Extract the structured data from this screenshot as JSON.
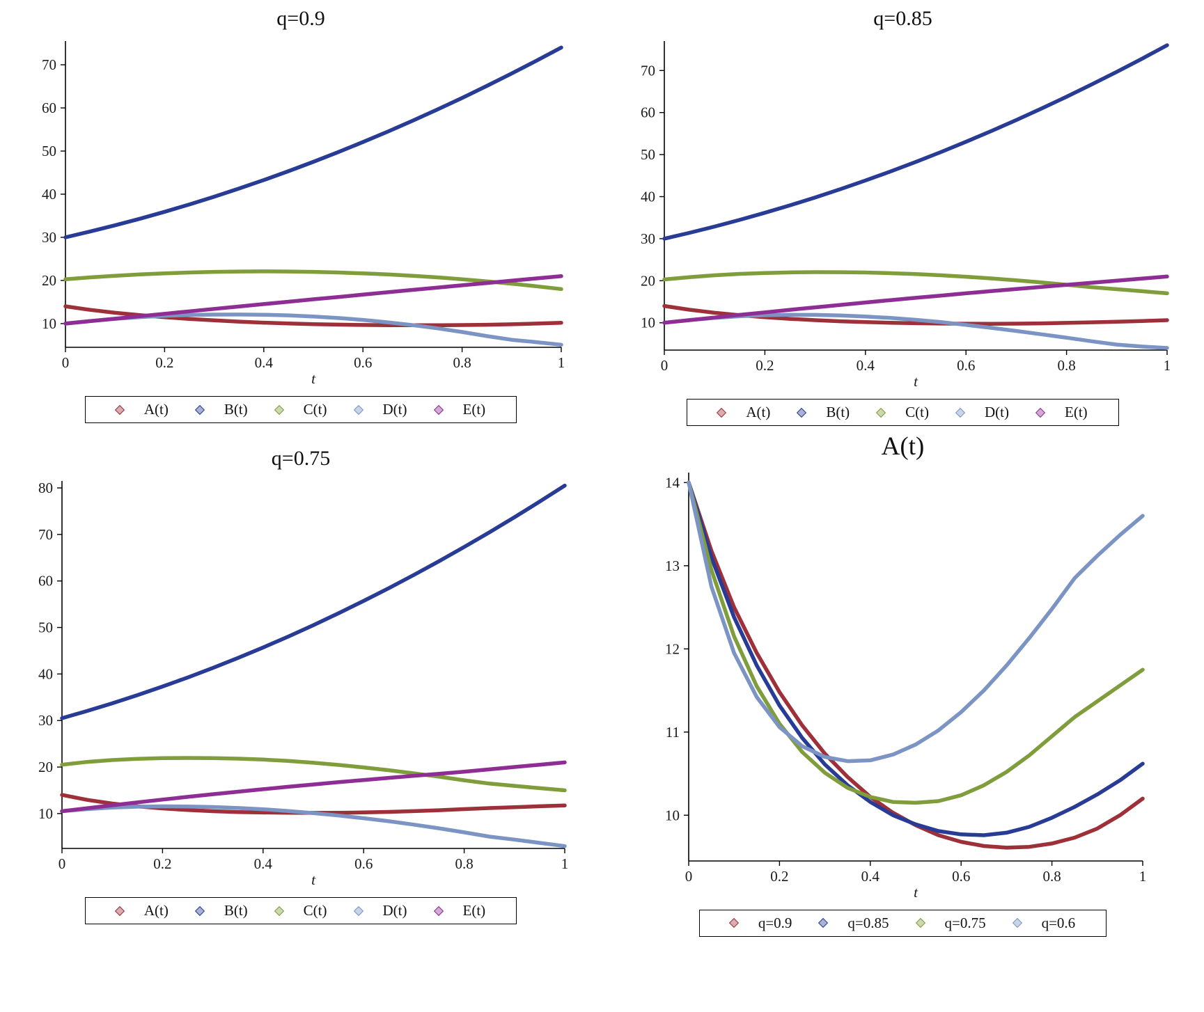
{
  "page": {
    "background": "#ffffff"
  },
  "chart_data": [
    {
      "id": "plot-q-0-9",
      "type": "line",
      "title": "q=0.9",
      "xlabel": "t",
      "ylabel": "",
      "xlim": [
        0,
        1
      ],
      "ylim": [
        4.5,
        75.5
      ],
      "xticks": [
        0,
        0.2,
        0.4,
        0.6,
        0.8,
        1
      ],
      "yticks": [
        10,
        20,
        30,
        40,
        50,
        60,
        70
      ],
      "grid": false,
      "legend_position": "bottom",
      "marker": "diamond",
      "x": [
        0,
        0.05,
        0.1,
        0.15,
        0.2,
        0.25,
        0.3,
        0.35,
        0.4,
        0.45,
        0.5,
        0.55,
        0.6,
        0.65,
        0.7,
        0.75,
        0.8,
        0.85,
        0.9,
        0.95,
        1
      ],
      "series": [
        {
          "name": "A(t)",
          "color": "#9e3039",
          "values": [
            14,
            13.18,
            12.5,
            11.95,
            11.48,
            11.08,
            10.74,
            10.46,
            10.22,
            10.03,
            9.88,
            9.76,
            9.68,
            9.63,
            9.61,
            9.62,
            9.66,
            9.73,
            9.84,
            10,
            10.2
          ]
        },
        {
          "name": "B(t)",
          "color": "#283c96",
          "values": [
            30,
            31.35,
            32.78,
            34.3,
            35.92,
            37.62,
            39.42,
            41.3,
            43.28,
            45.34,
            47.5,
            49.75,
            52.08,
            54.51,
            57.02,
            59.62,
            62.32,
            65.11,
            67.98,
            70.95,
            74
          ]
        },
        {
          "name": "C(t)",
          "color": "#7f9d3b",
          "values": [
            20.28,
            20.71,
            21.08,
            21.39,
            21.64,
            21.84,
            21.99,
            22.07,
            22.1,
            22.07,
            21.99,
            21.84,
            21.64,
            21.39,
            21.08,
            20.71,
            20.28,
            19.79,
            19.25,
            18.65,
            18
          ]
        },
        {
          "name": "D(t)",
          "color": "#7b94c4",
          "values": [
            10,
            10.6,
            11.1,
            11.5,
            11.8,
            12,
            12.08,
            12.1,
            12.05,
            11.9,
            11.65,
            11.3,
            10.85,
            10.3,
            9.65,
            8.9,
            8.05,
            7.1,
            6.25,
            5.7,
            5.1
          ]
        },
        {
          "name": "E(t)",
          "color": "#8e2d93",
          "values": [
            10,
            10.57,
            11.14,
            11.71,
            12.28,
            12.84,
            13.41,
            13.96,
            14.52,
            15.07,
            15.63,
            16.17,
            16.72,
            17.26,
            17.81,
            18.34,
            18.88,
            19.41,
            19.95,
            20.47,
            21
          ]
        }
      ]
    },
    {
      "id": "plot-q-0-85",
      "type": "line",
      "title": "q=0.85",
      "xlabel": "t",
      "ylabel": "",
      "xlim": [
        0,
        1
      ],
      "ylim": [
        3.5,
        77
      ],
      "xticks": [
        0,
        0.2,
        0.4,
        0.6,
        0.8,
        1
      ],
      "yticks": [
        10,
        20,
        30,
        40,
        50,
        60,
        70
      ],
      "grid": false,
      "legend_position": "bottom",
      "marker": "diamond",
      "x": [
        0,
        0.05,
        0.1,
        0.15,
        0.2,
        0.25,
        0.3,
        0.35,
        0.4,
        0.45,
        0.5,
        0.55,
        0.6,
        0.65,
        0.7,
        0.75,
        0.8,
        0.85,
        0.9,
        0.95,
        1
      ],
      "series": [
        {
          "name": "A(t)",
          "color": "#9e3039",
          "values": [
            14,
            13.1,
            12.38,
            11.8,
            11.32,
            10.93,
            10.61,
            10.36,
            10.16,
            10,
            9.89,
            9.81,
            9.77,
            9.76,
            9.79,
            9.86,
            9.97,
            10.1,
            10.25,
            10.42,
            10.62
          ]
        },
        {
          "name": "B(t)",
          "color": "#283c96",
          "values": [
            30,
            31.4,
            32.89,
            34.48,
            36.16,
            37.94,
            39.81,
            41.78,
            43.84,
            46,
            48.25,
            50.6,
            53.04,
            55.58,
            58.21,
            60.94,
            63.76,
            66.68,
            69.69,
            72.8,
            76
          ]
        },
        {
          "name": "C(t)",
          "color": "#7f9d3b",
          "values": [
            20.3,
            20.85,
            21.3,
            21.62,
            21.85,
            21.98,
            22.04,
            22.03,
            21.95,
            21.8,
            21.58,
            21.3,
            20.95,
            20.55,
            20.1,
            19.6,
            19.05,
            18.45,
            17.98,
            17.5,
            17
          ]
        },
        {
          "name": "D(t)",
          "color": "#7b94c4",
          "values": [
            10,
            10.65,
            11.15,
            11.55,
            11.8,
            11.9,
            11.88,
            11.75,
            11.5,
            11.15,
            10.7,
            10.15,
            9.5,
            8.8,
            8.05,
            7.25,
            6.45,
            5.6,
            4.8,
            4.35,
            4
          ]
        },
        {
          "name": "E(t)",
          "color": "#8e2d93",
          "values": [
            10,
            10.62,
            11.25,
            11.87,
            12.48,
            13.08,
            13.67,
            14.25,
            14.82,
            15.38,
            15.93,
            16.47,
            17,
            17.52,
            18.03,
            18.53,
            19.02,
            19.5,
            20,
            20.5,
            21
          ]
        }
      ]
    },
    {
      "id": "plot-q-0-75",
      "type": "line",
      "title": "q=0.75",
      "xlabel": "t",
      "ylabel": "",
      "xlim": [
        0,
        1
      ],
      "ylim": [
        2.5,
        81.5
      ],
      "xticks": [
        0,
        0.2,
        0.4,
        0.6,
        0.8,
        1
      ],
      "yticks": [
        10,
        20,
        30,
        40,
        50,
        60,
        70,
        80
      ],
      "grid": false,
      "legend_position": "bottom",
      "marker": "diamond",
      "x": [
        0,
        0.05,
        0.1,
        0.15,
        0.2,
        0.25,
        0.3,
        0.35,
        0.4,
        0.45,
        0.5,
        0.55,
        0.6,
        0.65,
        0.7,
        0.75,
        0.8,
        0.85,
        0.9,
        0.95,
        1
      ],
      "series": [
        {
          "name": "A(t)",
          "color": "#9e3039",
          "values": [
            14,
            12.95,
            12.15,
            11.55,
            11.1,
            10.76,
            10.51,
            10.33,
            10.22,
            10.16,
            10.15,
            10.17,
            10.24,
            10.36,
            10.52,
            10.72,
            10.95,
            11.18,
            11.37,
            11.56,
            11.75
          ]
        },
        {
          "name": "B(t)",
          "color": "#283c96",
          "values": [
            30.5,
            32.05,
            33.7,
            35.45,
            37.3,
            39.25,
            41.3,
            43.45,
            45.7,
            48.05,
            50.5,
            53.05,
            55.7,
            58.45,
            61.3,
            64.25,
            67.3,
            70.45,
            73.7,
            77.05,
            80.5
          ]
        },
        {
          "name": "C(t)",
          "color": "#7f9d3b",
          "values": [
            20.5,
            21.1,
            21.5,
            21.75,
            21.9,
            21.95,
            21.92,
            21.8,
            21.6,
            21.3,
            20.92,
            20.45,
            19.92,
            19.32,
            18.65,
            17.92,
            17.15,
            16.45,
            15.95,
            15.45,
            15
          ]
        },
        {
          "name": "D(t)",
          "color": "#7b94c4",
          "values": [
            10.5,
            10.95,
            11.3,
            11.48,
            11.55,
            11.52,
            11.4,
            11.2,
            10.92,
            10.55,
            10.1,
            9.58,
            9,
            8.35,
            7.62,
            6.82,
            5.95,
            5.05,
            4.4,
            3.7,
            3
          ]
        },
        {
          "name": "E(t)",
          "color": "#8e2d93",
          "values": [
            10.5,
            11.15,
            11.78,
            12.4,
            13,
            13.58,
            14.15,
            14.7,
            15.23,
            15.75,
            16.25,
            16.74,
            17.21,
            17.67,
            18.12,
            18.56,
            19,
            19.5,
            20,
            20.5,
            21
          ]
        }
      ]
    },
    {
      "id": "plot-A-comparison",
      "type": "line",
      "title": "A(t)",
      "xlabel": "t",
      "ylabel": "",
      "xlim": [
        0,
        1
      ],
      "ylim": [
        9.45,
        14.12
      ],
      "xticks": [
        0,
        0.2,
        0.4,
        0.6,
        0.8,
        1
      ],
      "yticks": [
        10,
        11,
        12,
        13,
        14
      ],
      "grid": false,
      "legend_position": "bottom",
      "marker": "diamond",
      "x": [
        0,
        0.05,
        0.1,
        0.15,
        0.2,
        0.25,
        0.3,
        0.35,
        0.4,
        0.45,
        0.5,
        0.55,
        0.6,
        0.65,
        0.7,
        0.75,
        0.8,
        0.85,
        0.9,
        0.95,
        1
      ],
      "series": [
        {
          "name": "q=0.9",
          "color": "#9e3039",
          "values": [
            14,
            13.18,
            12.5,
            11.95,
            11.48,
            11.08,
            10.74,
            10.46,
            10.22,
            10.03,
            9.88,
            9.76,
            9.68,
            9.63,
            9.61,
            9.62,
            9.66,
            9.73,
            9.84,
            10,
            10.2
          ]
        },
        {
          "name": "q=0.85",
          "color": "#283c96",
          "values": [
            14,
            13.1,
            12.38,
            11.8,
            11.32,
            10.93,
            10.61,
            10.36,
            10.16,
            10,
            9.89,
            9.81,
            9.77,
            9.76,
            9.79,
            9.86,
            9.97,
            10.1,
            10.25,
            10.42,
            10.62
          ]
        },
        {
          "name": "q=0.75",
          "color": "#7f9d3b",
          "values": [
            14,
            12.95,
            12.15,
            11.55,
            11.1,
            10.76,
            10.51,
            10.33,
            10.22,
            10.16,
            10.15,
            10.17,
            10.24,
            10.36,
            10.52,
            10.72,
            10.95,
            11.18,
            11.37,
            11.56,
            11.75
          ]
        },
        {
          "name": "q=0.6",
          "color": "#7b94c4",
          "values": [
            14,
            12.75,
            11.95,
            11.42,
            11.06,
            10.83,
            10.7,
            10.65,
            10.66,
            10.73,
            10.85,
            11.02,
            11.24,
            11.5,
            11.8,
            12.13,
            12.48,
            12.85,
            13.12,
            13.37,
            13.6
          ]
        }
      ]
    }
  ]
}
